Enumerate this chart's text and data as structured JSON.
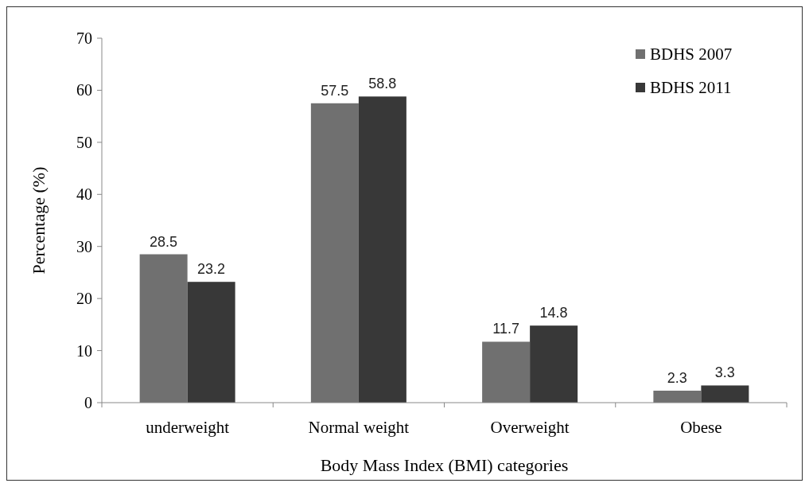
{
  "chart_data": {
    "type": "bar",
    "xlabel": "Body Mass Index (BMI) categories",
    "ylabel": "Percentage (%)",
    "categories": [
      "underweight",
      "Normal weight",
      "Overweight",
      "Obese"
    ],
    "series": [
      {
        "name": "BDHS 2007",
        "color": "#707070",
        "values": [
          28.5,
          57.5,
          11.7,
          2.3
        ]
      },
      {
        "name": "BDHS 2011",
        "color": "#383838",
        "values": [
          23.2,
          58.8,
          14.8,
          3.3
        ]
      }
    ],
    "ylim": [
      0,
      70
    ],
    "yticks": [
      0,
      10,
      20,
      30,
      40,
      50,
      60,
      70
    ],
    "data_labels": true,
    "legend": "top right",
    "grid": false
  }
}
